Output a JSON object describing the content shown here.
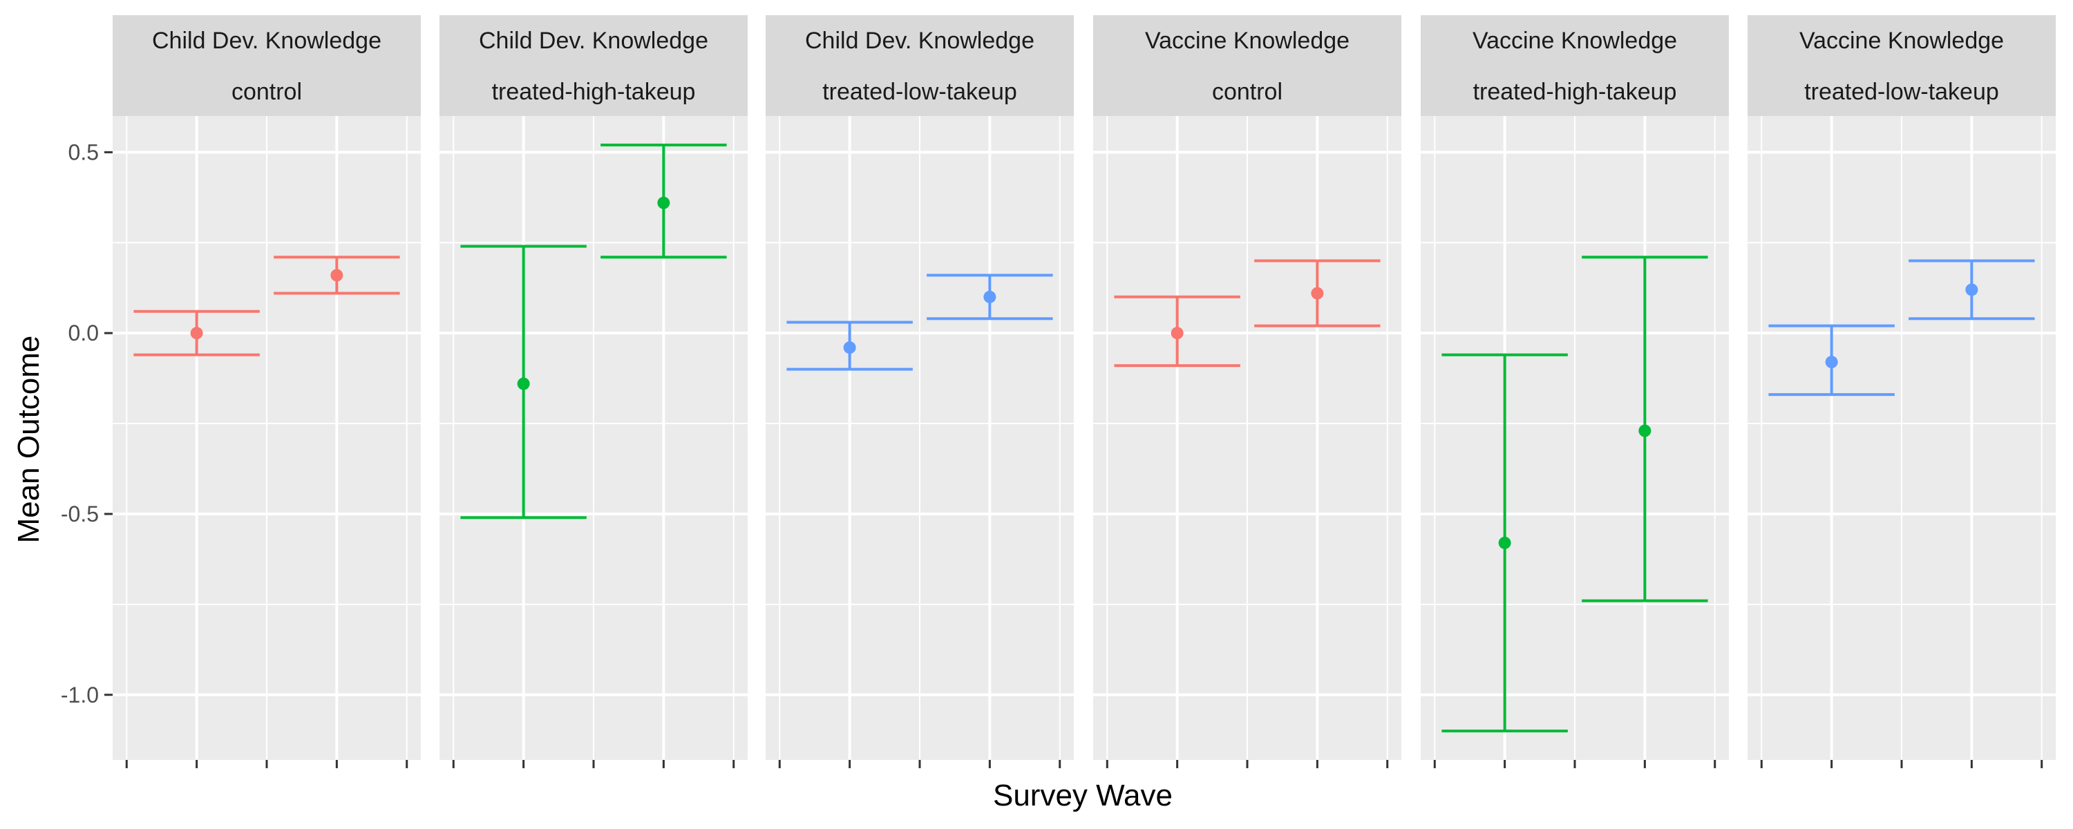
{
  "chart_data": {
    "type": "errorbar",
    "xlabel": "Survey Wave",
    "ylabel": "Mean Outcome",
    "ylim": [
      -1.18,
      0.6
    ],
    "y_ticks": [
      0.5,
      0.0,
      -0.5,
      -1.0
    ],
    "y_tick_labels": [
      "0.5",
      "0.0",
      "-0.5",
      "-1.0"
    ],
    "grid": true,
    "x_tick_labels_shown": false,
    "group_colors": {
      "control": "#F8766D",
      "treated-high-takeup": "#00BA38",
      "treated-low-takeup": "#619CFF"
    },
    "panels": [
      {
        "outcome": "Child Dev. Knowledge",
        "group": "control",
        "points": [
          {
            "wave": 1,
            "mean": 0.0,
            "lower": -0.06,
            "upper": 0.06
          },
          {
            "wave": 2,
            "mean": 0.16,
            "lower": 0.11,
            "upper": 0.21
          }
        ]
      },
      {
        "outcome": "Child Dev. Knowledge",
        "group": "treated-high-takeup",
        "points": [
          {
            "wave": 1,
            "mean": -0.14,
            "lower": -0.51,
            "upper": 0.24
          },
          {
            "wave": 2,
            "mean": 0.36,
            "lower": 0.21,
            "upper": 0.52
          }
        ]
      },
      {
        "outcome": "Child Dev. Knowledge",
        "group": "treated-low-takeup",
        "points": [
          {
            "wave": 1,
            "mean": -0.04,
            "lower": -0.1,
            "upper": 0.03
          },
          {
            "wave": 2,
            "mean": 0.1,
            "lower": 0.04,
            "upper": 0.16
          }
        ]
      },
      {
        "outcome": "Vaccine Knowledge",
        "group": "control",
        "points": [
          {
            "wave": 1,
            "mean": 0.0,
            "lower": -0.09,
            "upper": 0.1
          },
          {
            "wave": 2,
            "mean": 0.11,
            "lower": 0.02,
            "upper": 0.2
          }
        ]
      },
      {
        "outcome": "Vaccine Knowledge",
        "group": "treated-high-takeup",
        "points": [
          {
            "wave": 1,
            "mean": -0.58,
            "lower": -1.1,
            "upper": -0.06
          },
          {
            "wave": 2,
            "mean": -0.27,
            "lower": -0.74,
            "upper": 0.21
          }
        ]
      },
      {
        "outcome": "Vaccine Knowledge",
        "group": "treated-low-takeup",
        "points": [
          {
            "wave": 1,
            "mean": -0.08,
            "lower": -0.17,
            "upper": 0.02
          },
          {
            "wave": 2,
            "mean": 0.12,
            "lower": 0.04,
            "upper": 0.2
          }
        ]
      }
    ]
  }
}
